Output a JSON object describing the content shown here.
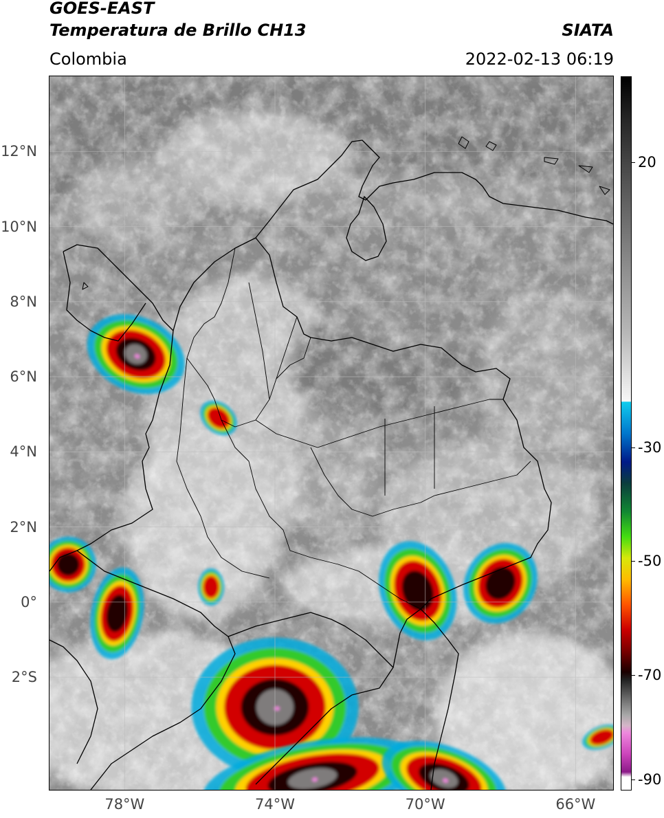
{
  "header": {
    "satellite": "GOES-EAST",
    "product": "Temperatura de Brillo CH13",
    "source": "SIATA",
    "region": "Colombia",
    "timestamp": "2022-02-13 06:19"
  },
  "map": {
    "extent": {
      "lon_min": -80.0,
      "lon_max": -65.0,
      "lat_min": -5.0,
      "lat_max": 14.0
    },
    "latitude_labels": [
      {
        "lat": 12,
        "label": "12°N"
      },
      {
        "lat": 10,
        "label": "10°N"
      },
      {
        "lat": 8,
        "label": "8°N"
      },
      {
        "lat": 6,
        "label": "6°N"
      },
      {
        "lat": 4,
        "label": "4°N"
      },
      {
        "lat": 2,
        "label": "2°N"
      },
      {
        "lat": 0,
        "label": "0°"
      },
      {
        "lat": -2,
        "label": "2°S"
      }
    ],
    "longitude_labels": [
      {
        "lon": -78,
        "label": "78°W"
      },
      {
        "lon": -74,
        "label": "74°W"
      },
      {
        "lon": -70,
        "label": "70°W"
      },
      {
        "lon": -66,
        "label": "66°W"
      }
    ],
    "gridlines": true,
    "colors": {
      "background_cloud": "#8c8c8c",
      "cold_top_core": "#1a0000",
      "cold_top_red": "#d20000",
      "cold_top_yellow": "#ffd000",
      "cold_top_green": "#33cc22",
      "cold_top_cyan": "#00aadd",
      "overshoot_pink": "#ee88dd",
      "coastline": "#000000"
    }
  },
  "colorbar": {
    "units_range": [
      -90,
      35
    ],
    "ticks": [
      {
        "value": 20,
        "label": "20"
      },
      {
        "value": -30,
        "label": "-30"
      },
      {
        "value": -50,
        "label": "-50"
      },
      {
        "value": -70,
        "label": "-70"
      },
      {
        "value": -90,
        "label": "-90"
      }
    ]
  }
}
